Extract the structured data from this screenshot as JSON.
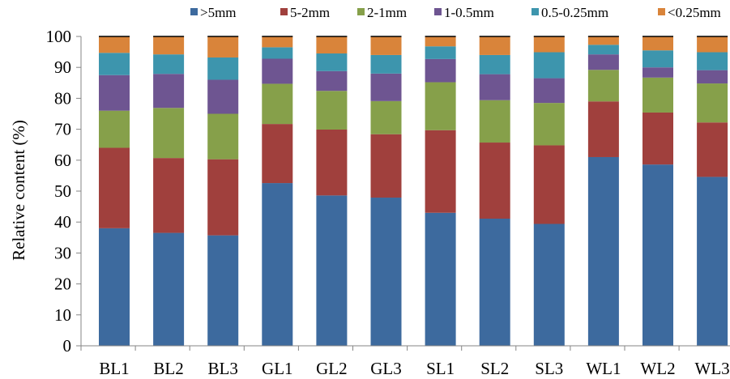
{
  "chart_data": {
    "type": "bar",
    "stacked": true,
    "title": "",
    "xlabel": "",
    "ylabel": "Relative content (%)",
    "ylim": [
      0,
      100
    ],
    "yticks": [
      0,
      10,
      20,
      30,
      40,
      50,
      60,
      70,
      80,
      90,
      100
    ],
    "grid": false,
    "legend": "top",
    "categories": [
      "BL1",
      "BL2",
      "BL3",
      "GL1",
      "GL2",
      "GL3",
      "SL1",
      "SL2",
      "SL3",
      "WL1",
      "WL2",
      "WL3"
    ],
    "series": [
      {
        "name": ">5mm",
        "color": "#3d6a9e",
        "values": [
          38.0,
          36.5,
          35.7,
          52.6,
          48.6,
          47.9,
          43.0,
          41.1,
          39.4,
          61.0,
          58.6,
          54.6
        ]
      },
      {
        "name": "5-2mm",
        "color": "#a0403d",
        "values": [
          26.0,
          24.2,
          24.6,
          19.1,
          21.3,
          20.5,
          26.7,
          24.6,
          25.4,
          18.0,
          16.8,
          17.6
        ]
      },
      {
        "name": "2-1mm",
        "color": "#86a04a",
        "values": [
          12.0,
          16.2,
          14.7,
          13.0,
          12.5,
          10.7,
          15.5,
          13.7,
          13.7,
          10.2,
          11.3,
          12.6
        ]
      },
      {
        "name": "1-0.5mm",
        "color": "#6e5591",
        "values": [
          11.5,
          11.0,
          11.0,
          8.1,
          6.4,
          8.9,
          7.5,
          8.4,
          8.0,
          5.0,
          3.3,
          4.3
        ]
      },
      {
        "name": "0.5-0.25mm",
        "color": "#3d95ad",
        "values": [
          7.2,
          6.3,
          7.2,
          3.7,
          5.7,
          6.0,
          4.1,
          6.2,
          8.4,
          3.1,
          5.5,
          5.8
        ]
      },
      {
        "name": "<0.25mm",
        "color": "#d9843a",
        "values": [
          5.3,
          5.8,
          6.8,
          3.5,
          5.5,
          6.0,
          3.2,
          6.0,
          5.1,
          2.7,
          4.5,
          5.1
        ]
      }
    ]
  }
}
